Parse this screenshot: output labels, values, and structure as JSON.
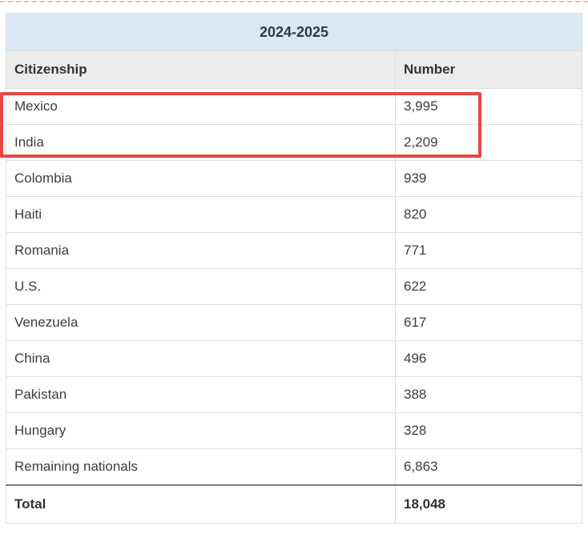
{
  "table": {
    "title": "2024-2025",
    "columns": {
      "citizenship": "Citizenship",
      "number": "Number"
    },
    "rows": [
      {
        "citizenship": "Mexico",
        "number": "3,995"
      },
      {
        "citizenship": "India",
        "number": "2,209"
      },
      {
        "citizenship": "Colombia",
        "number": "939"
      },
      {
        "citizenship": "Haiti",
        "number": "820"
      },
      {
        "citizenship": "Romania",
        "number": "771"
      },
      {
        "citizenship": "U.S.",
        "number": "622"
      },
      {
        "citizenship": "Venezuela",
        "number": "617"
      },
      {
        "citizenship": "China",
        "number": "496"
      },
      {
        "citizenship": "Pakistan",
        "number": "388"
      },
      {
        "citizenship": "Hungary",
        "number": "328"
      },
      {
        "citizenship": "Remaining nationals",
        "number": "6,863"
      }
    ],
    "total": {
      "label": "Total",
      "number": "18,048"
    }
  },
  "annotation": {
    "highlight_rows": [
      "Mexico",
      "India"
    ],
    "highlight_color": "#e84742"
  },
  "colors": {
    "title_background": "#d9e9f4",
    "header_background": "#ececec",
    "row_border": "#dddddd",
    "total_top_border": "#7d7d7d",
    "text": "#3d3d3d"
  }
}
